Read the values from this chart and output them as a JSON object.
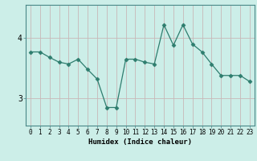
{
  "x": [
    0,
    1,
    2,
    3,
    4,
    5,
    6,
    7,
    8,
    9,
    10,
    11,
    12,
    13,
    14,
    15,
    16,
    17,
    18,
    19,
    20,
    21,
    22,
    23
  ],
  "y": [
    3.77,
    3.77,
    3.68,
    3.6,
    3.57,
    3.65,
    3.48,
    3.32,
    2.85,
    2.85,
    3.65,
    3.65,
    3.6,
    3.57,
    4.22,
    3.88,
    4.22,
    3.9,
    3.77,
    3.57,
    3.38,
    3.38,
    3.38,
    3.28
  ],
  "xlabel": "Humidex (Indice chaleur)",
  "bg_color": "#cceee8",
  "line_color": "#2e7d6e",
  "marker_color": "#2e7d6e",
  "grid_color_v": "#c8b8b8",
  "grid_color_h": "#c8b8b8",
  "yticks": [
    3,
    4
  ],
  "xtick_labels": [
    "0",
    "1",
    "2",
    "3",
    "4",
    "5",
    "6",
    "7",
    "8",
    "9",
    "10",
    "11",
    "12",
    "13",
    "14",
    "15",
    "16",
    "17",
    "18",
    "19",
    "20",
    "21",
    "22",
    "23"
  ],
  "ylim": [
    2.55,
    4.55
  ],
  "xlim": [
    -0.5,
    23.5
  ]
}
